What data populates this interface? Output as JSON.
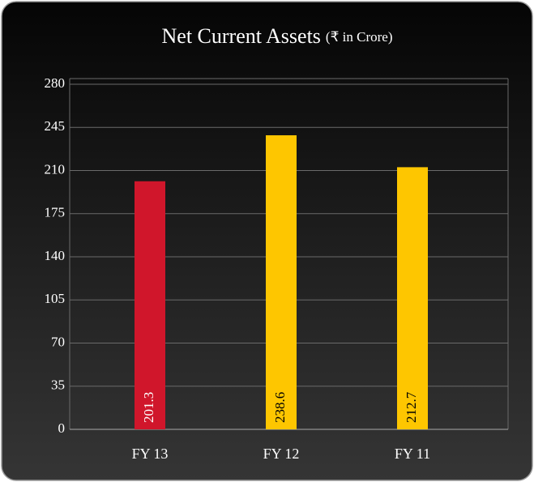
{
  "chart_data": {
    "type": "bar",
    "title": "Net Current Assets",
    "subtitle": "(₹ in Crore)",
    "categories": [
      "FY 13",
      "FY 12",
      "FY 11"
    ],
    "values": [
      201.3,
      238.6,
      212.7
    ],
    "colors": [
      "#d0162b",
      "#fec600",
      "#fec600"
    ],
    "label_colors": [
      "#ffffff",
      "#000000",
      "#000000"
    ],
    "ylim": [
      0,
      280
    ],
    "yticks": [
      0,
      35,
      70,
      105,
      140,
      175,
      210,
      245,
      280
    ],
    "grid": true
  }
}
